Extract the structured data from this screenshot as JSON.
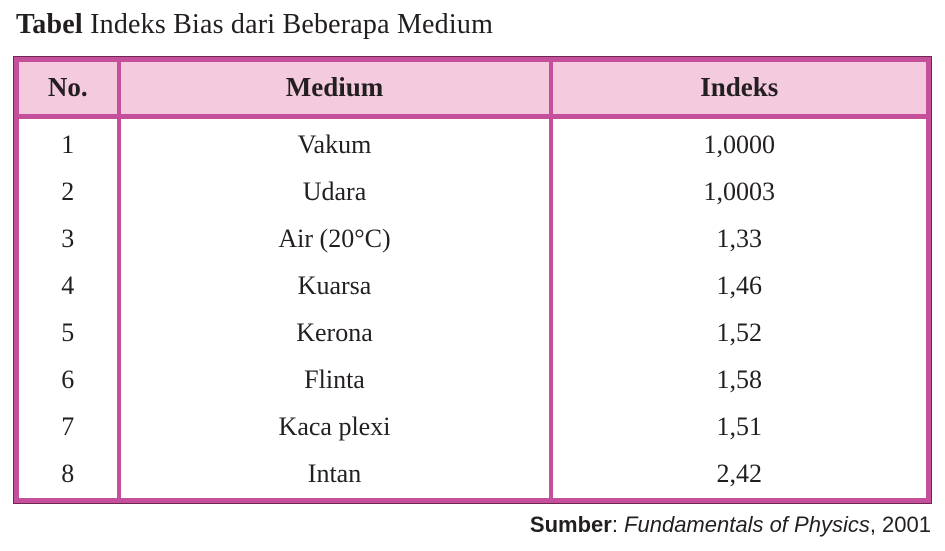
{
  "title": {
    "bold": "Tabel",
    "rest": " Indeks Bias dari Beberapa Medium"
  },
  "table": {
    "headers": [
      "No.",
      "Medium",
      "Indeks"
    ],
    "rows": [
      {
        "no": "1",
        "medium": "Vakum",
        "indeks": "1,0000"
      },
      {
        "no": "2",
        "medium": "Udara",
        "indeks": "1,0003"
      },
      {
        "no": "3",
        "medium": "Air (20°C)",
        "indeks": "1,33"
      },
      {
        "no": "4",
        "medium": "Kuarsa",
        "indeks": "1,46"
      },
      {
        "no": "5",
        "medium": "Kerona",
        "indeks": "1,52"
      },
      {
        "no": "6",
        "medium": "Flinta",
        "indeks": "1,58"
      },
      {
        "no": "7",
        "medium": "Kaca plexi",
        "indeks": "1,51"
      },
      {
        "no": "8",
        "medium": "Intan",
        "indeks": "2,42"
      }
    ]
  },
  "source": {
    "label": "Sumber",
    "separator": ": ",
    "work": "Fundamentals of Physics",
    "year": ", 2001"
  },
  "colors": {
    "table_border": "#c64f9c",
    "header_background": "#f3cade",
    "text": "#231f20",
    "page_background": "#ffffff"
  }
}
